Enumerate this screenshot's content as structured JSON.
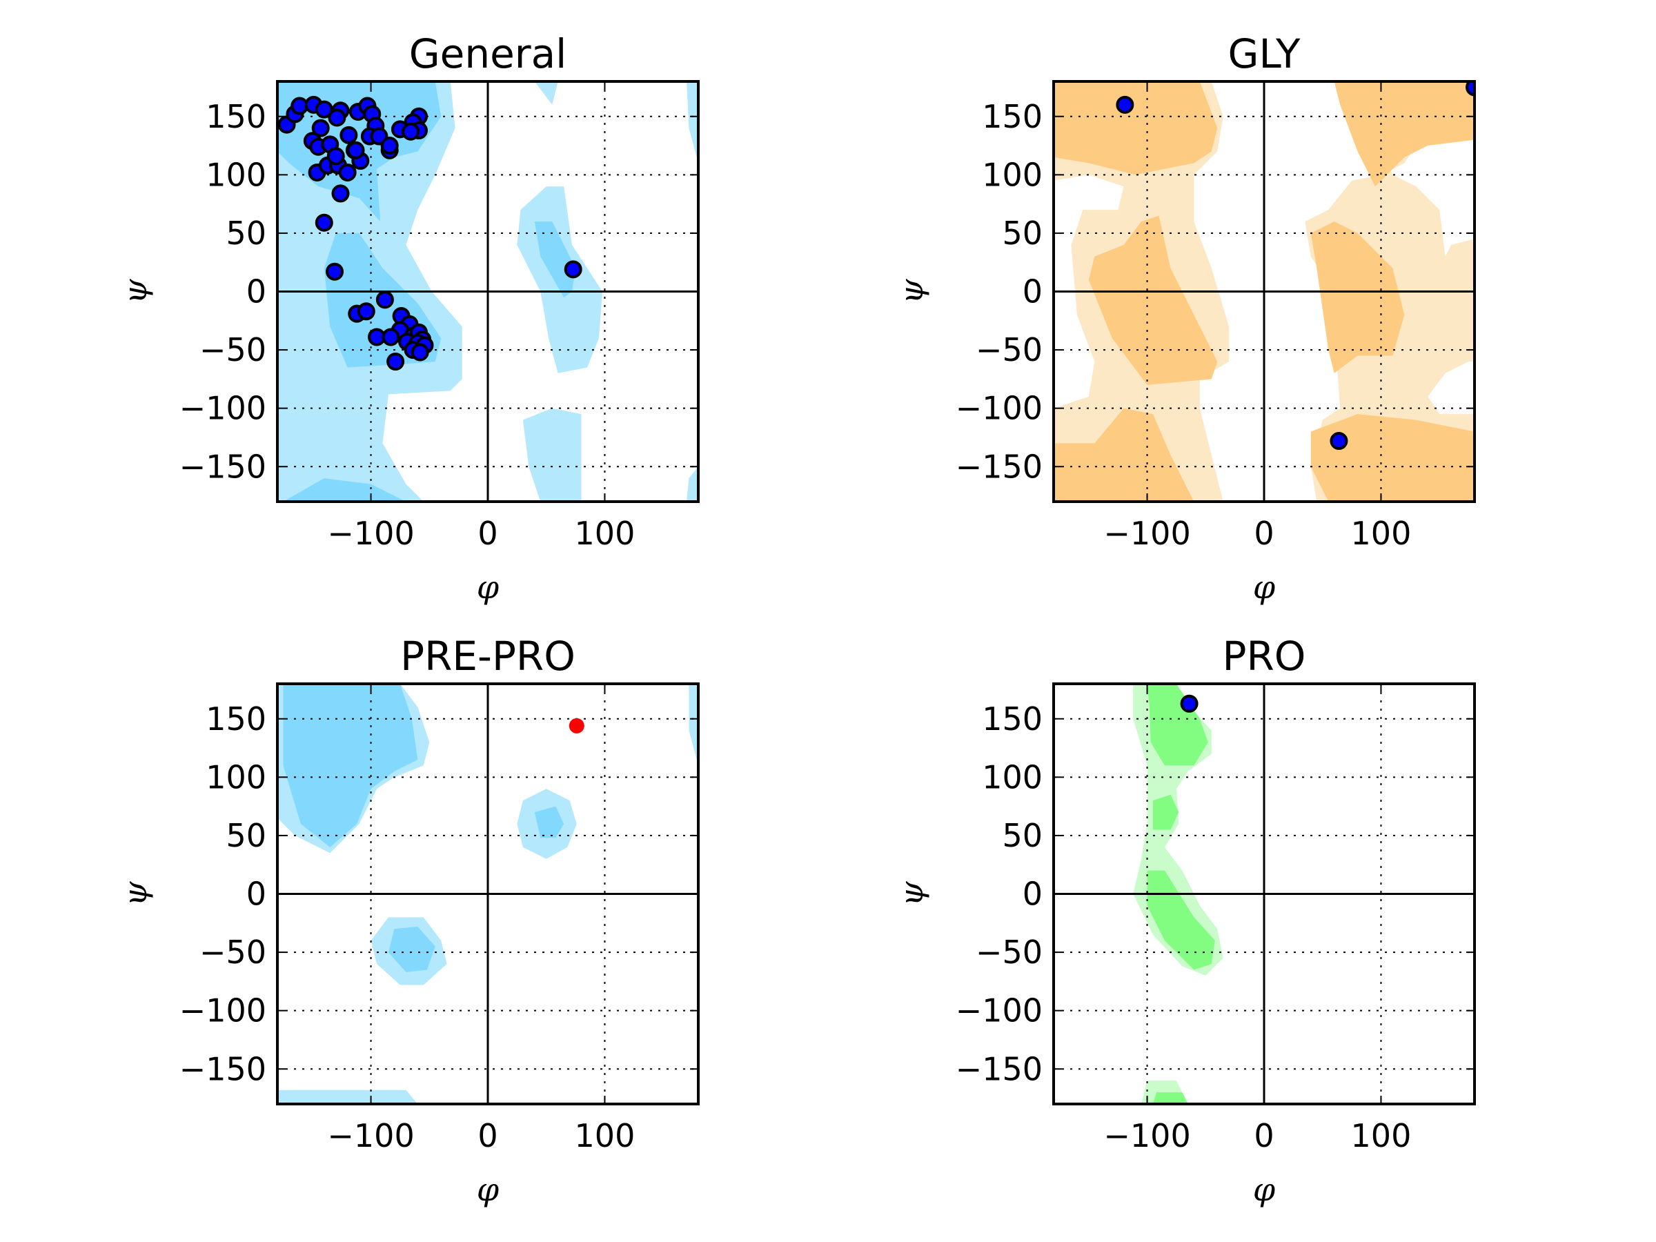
{
  "figure": {
    "type": "ramachandran",
    "panels": [
      "General",
      "GLY",
      "PRE-PRO",
      "PRO"
    ]
  },
  "chart_data": [
    {
      "type": "scatter",
      "title": "General",
      "xlabel": "φ",
      "ylabel": "ψ",
      "xlim": [
        -180,
        180
      ],
      "ylim": [
        -180,
        180
      ],
      "xticks": [
        -100,
        0,
        100
      ],
      "xtick_labels": [
        "−100",
        "0",
        "100"
      ],
      "yticks": [
        150,
        100,
        50,
        0,
        -50,
        -100,
        -150
      ],
      "ytick_labels": [
        "150",
        "100",
        "50",
        "0",
        "−50",
        "−100",
        "−150"
      ],
      "grid": true,
      "background_regions": "favoured/allowed contour (blue)",
      "colors": {
        "favoured": "#82d9fd",
        "allowed": "#b4e8fc",
        "point_fill": "#0000ff",
        "point_edge": "#000000"
      },
      "points": [
        [
          -172,
          143
        ],
        [
          -165,
          152
        ],
        [
          -161,
          159
        ],
        [
          -149,
          160
        ],
        [
          -140,
          156
        ],
        [
          -126,
          155
        ],
        [
          -129,
          149
        ],
        [
          -111,
          154
        ],
        [
          -103,
          159
        ],
        [
          -99,
          152
        ],
        [
          -96,
          142
        ],
        [
          -143,
          140
        ],
        [
          -119,
          134
        ],
        [
          -150,
          129
        ],
        [
          -145,
          124
        ],
        [
          -135,
          126
        ],
        [
          -101,
          133
        ],
        [
          -93,
          133
        ],
        [
          -114,
          121
        ],
        [
          -84,
          121
        ],
        [
          -59,
          150
        ],
        [
          -64,
          145
        ],
        [
          -75,
          139
        ],
        [
          -59,
          138
        ],
        [
          -66,
          137
        ],
        [
          -84,
          125
        ],
        [
          -146,
          102
        ],
        [
          -137,
          108
        ],
        [
          -128,
          108
        ],
        [
          -130,
          116
        ],
        [
          -120,
          102
        ],
        [
          -109,
          112
        ],
        [
          -113,
          121
        ],
        [
          -126,
          84
        ],
        [
          -140,
          59
        ],
        [
          -131,
          17
        ],
        [
          73,
          19
        ],
        [
          -88,
          -7
        ],
        [
          -112,
          -19
        ],
        [
          -104,
          -17
        ],
        [
          -74,
          -21
        ],
        [
          -67,
          -28
        ],
        [
          -75,
          -33
        ],
        [
          -95,
          -39
        ],
        [
          -83,
          -39
        ],
        [
          -64,
          -38
        ],
        [
          -59,
          -35
        ],
        [
          -56,
          -41
        ],
        [
          -69,
          -43
        ],
        [
          -60,
          -44
        ],
        [
          -54,
          -46
        ],
        [
          -64,
          -50
        ],
        [
          -58,
          -52
        ],
        [
          -79,
          -60
        ]
      ]
    },
    {
      "type": "scatter",
      "title": "GLY",
      "xlabel": "φ",
      "ylabel": "ψ",
      "xlim": [
        -180,
        180
      ],
      "ylim": [
        -180,
        180
      ],
      "xticks": [
        -100,
        0,
        100
      ],
      "xtick_labels": [
        "−100",
        "0",
        "100"
      ],
      "yticks": [
        150,
        100,
        50,
        0,
        -50,
        -100,
        -150
      ],
      "ytick_labels": [
        "150",
        "100",
        "50",
        "0",
        "−50",
        "−100",
        "−150"
      ],
      "grid": true,
      "background_regions": "favoured/allowed contour (orange)",
      "colors": {
        "favoured": "#fdcc82",
        "allowed": "#fde8c6",
        "point_fill": "#0000ff",
        "point_edge": "#000000"
      },
      "points": [
        [
          -119,
          160
        ],
        [
          180,
          175
        ],
        [
          64,
          -128
        ]
      ]
    },
    {
      "type": "scatter",
      "title": "PRE-PRO",
      "xlabel": "φ",
      "ylabel": "ψ",
      "xlim": [
        -180,
        180
      ],
      "ylim": [
        -180,
        180
      ],
      "xticks": [
        -100,
        0,
        100
      ],
      "xtick_labels": [
        "−100",
        "0",
        "100"
      ],
      "yticks": [
        150,
        100,
        50,
        0,
        -50,
        -100,
        -150
      ],
      "ytick_labels": [
        "150",
        "100",
        "50",
        "0",
        "−50",
        "−100",
        "−150"
      ],
      "grid": true,
      "background_regions": "favoured/allowed contour (blue)",
      "colors": {
        "favoured": "#82d9fd",
        "allowed": "#b4e8fc",
        "point_fill": "#ff0000",
        "point_edge": "#ff0000"
      },
      "points": [
        [
          76,
          144
        ]
      ],
      "outliers": [
        [
          76,
          144
        ]
      ]
    },
    {
      "type": "scatter",
      "title": "PRO",
      "xlabel": "φ",
      "ylabel": "ψ",
      "xlim": [
        -180,
        180
      ],
      "ylim": [
        -180,
        180
      ],
      "xticks": [
        -100,
        0,
        100
      ],
      "xtick_labels": [
        "−100",
        "0",
        "100"
      ],
      "yticks": [
        150,
        100,
        50,
        0,
        -50,
        -100,
        -150
      ],
      "ytick_labels": [
        "150",
        "100",
        "50",
        "0",
        "−50",
        "−100",
        "−150"
      ],
      "grid": true,
      "background_regions": "favoured/allowed contour (green)",
      "colors": {
        "favoured": "#82fd82",
        "allowed": "#cafccb",
        "point_fill": "#0000ff",
        "point_edge": "#000000"
      },
      "points": [
        [
          -64,
          163
        ]
      ]
    }
  ]
}
